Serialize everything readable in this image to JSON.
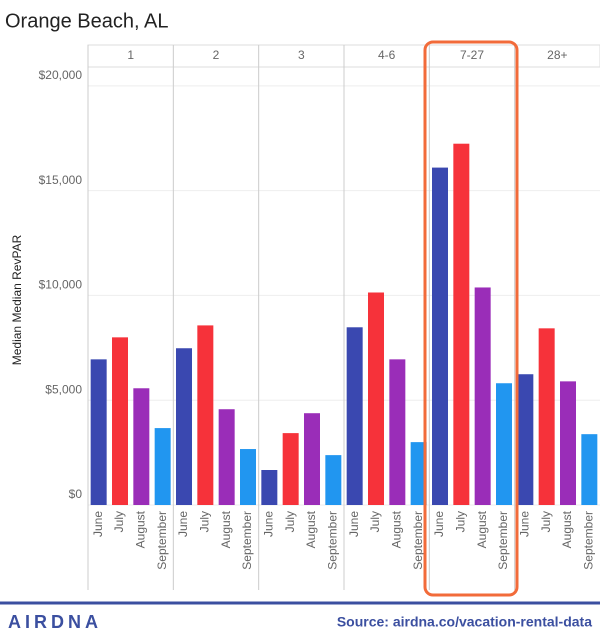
{
  "chart_data": {
    "type": "bar",
    "title": "Orange Beach, AL",
    "y_label": "Median Median RevPAR",
    "categories": [
      "June",
      "July",
      "August",
      "September"
    ],
    "colors": [
      "#3a48b0",
      "#f6323a",
      "#9a2db8",
      "#2196f0"
    ],
    "facets": [
      {
        "name": "1",
        "values": [
          6950,
          8000,
          5570,
          3670
        ]
      },
      {
        "name": "2",
        "values": [
          7480,
          8570,
          4570,
          2670
        ]
      },
      {
        "name": "3",
        "values": [
          1670,
          3430,
          4380,
          2380
        ]
      },
      {
        "name": "4-6",
        "values": [
          8480,
          10140,
          6950,
          3000
        ]
      },
      {
        "name": "7-27",
        "values": [
          16100,
          17240,
          10380,
          5810
        ]
      },
      {
        "name": "28+",
        "values": [
          6240,
          8430,
          5900,
          3380
        ]
      }
    ],
    "ylim": [
      0,
      20900
    ],
    "yticks": [
      {
        "value": 0,
        "label": "$0"
      },
      {
        "value": 5000,
        "label": "$5,000"
      },
      {
        "value": 10000,
        "label": "$10,000"
      },
      {
        "value": 15000,
        "label": "$15,000"
      },
      {
        "value": 20000,
        "label": "$20,000"
      }
    ],
    "grid": true
  },
  "footer": {
    "logo": "AIRDNA",
    "source": "Source: airdna.co/vacation-rental-data"
  }
}
